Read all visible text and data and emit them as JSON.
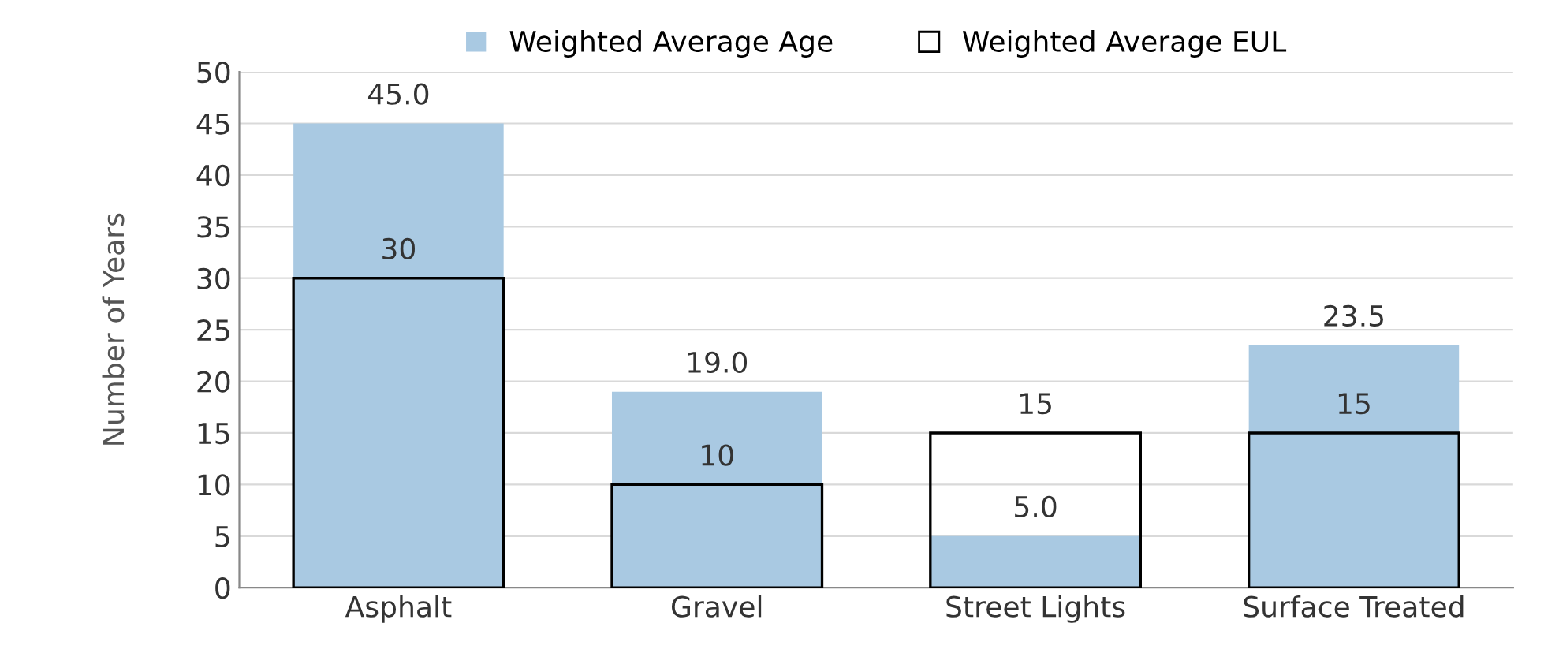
{
  "chart_data": {
    "type": "bar",
    "ylabel": "Number of Years",
    "categories": [
      "Asphalt",
      "Gravel",
      "Street Lights",
      "Surface Treated"
    ],
    "series": [
      {
        "name": "Weighted Average Age",
        "color": "#a9c9e2",
        "values": [
          45.0,
          19.0,
          5.0,
          23.5
        ],
        "value_labels": [
          "45.0",
          "19.0",
          "5.0",
          "23.5"
        ]
      },
      {
        "name": "Weighted Average EUL",
        "color": "#000000",
        "values": [
          30,
          10,
          15,
          15
        ],
        "value_labels": [
          "30",
          "10",
          "15",
          "15"
        ]
      }
    ],
    "ylim": [
      0,
      50
    ],
    "yticks": [
      0,
      5,
      10,
      15,
      20,
      25,
      30,
      35,
      40,
      45,
      50
    ],
    "grid": "y",
    "legend": "top"
  }
}
